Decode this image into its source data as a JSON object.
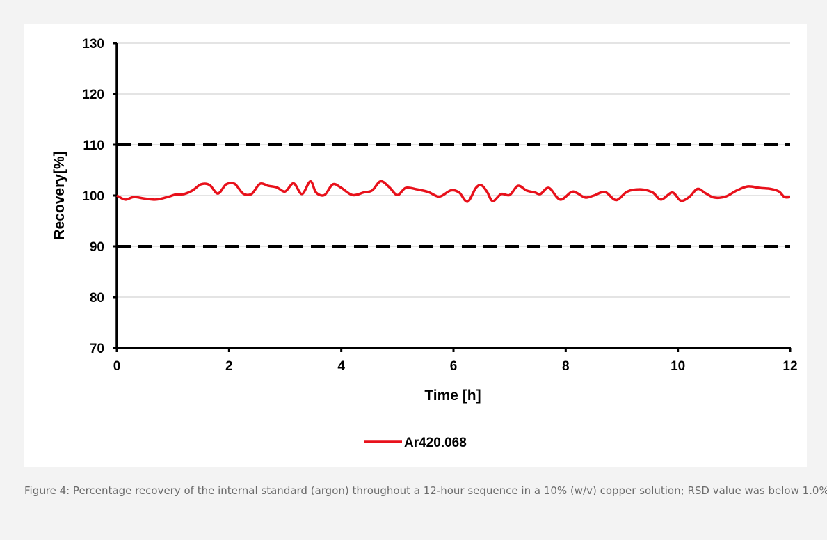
{
  "chart_data": {
    "type": "line",
    "xlabel": "Time [h]",
    "ylabel": "Recovery[%]",
    "xlim": [
      0,
      12
    ],
    "ylim": [
      70,
      130
    ],
    "x_ticks": [
      "0",
      "2",
      "4",
      "6",
      "8",
      "10",
      "12"
    ],
    "y_ticks": [
      "70",
      "80",
      "90",
      "100",
      "110",
      "120",
      "130"
    ],
    "grid": "horizontal",
    "limit_lines": [
      90,
      110
    ],
    "legend_position": "bottom",
    "series": [
      {
        "name": "Ar420.068",
        "color": "#e8111b",
        "x": [
          0,
          0.15,
          0.3,
          0.5,
          0.7,
          0.9,
          1.05,
          1.2,
          1.35,
          1.5,
          1.65,
          1.8,
          1.95,
          2.1,
          2.25,
          2.4,
          2.55,
          2.7,
          2.85,
          3.0,
          3.15,
          3.3,
          3.45,
          3.55,
          3.7,
          3.85,
          4.0,
          4.2,
          4.4,
          4.55,
          4.7,
          4.85,
          5.0,
          5.15,
          5.35,
          5.55,
          5.75,
          5.95,
          6.1,
          6.25,
          6.4,
          6.5,
          6.6,
          6.7,
          6.85,
          7.0,
          7.15,
          7.3,
          7.45,
          7.55,
          7.7,
          7.9,
          8.1,
          8.2,
          8.35,
          8.5,
          8.7,
          8.9,
          9.1,
          9.35,
          9.55,
          9.7,
          9.9,
          10.05,
          10.2,
          10.35,
          10.5,
          10.65,
          10.85,
          11.05,
          11.25,
          11.45,
          11.65,
          11.8,
          11.9,
          12.0
        ],
        "values": [
          100.0,
          99.2,
          99.7,
          99.4,
          99.2,
          99.7,
          100.2,
          100.3,
          101.0,
          102.2,
          102.1,
          100.4,
          102.2,
          102.3,
          100.4,
          100.3,
          102.3,
          101.9,
          101.6,
          100.8,
          102.4,
          100.3,
          102.8,
          100.6,
          100.1,
          102.2,
          101.5,
          100.1,
          100.6,
          101.0,
          102.8,
          101.7,
          100.1,
          101.5,
          101.2,
          100.7,
          99.8,
          101.0,
          100.6,
          98.8,
          101.5,
          102.0,
          100.7,
          98.9,
          100.3,
          100.1,
          101.9,
          101.0,
          100.6,
          100.3,
          101.5,
          99.2,
          100.7,
          100.5,
          99.6,
          100.0,
          100.7,
          99.1,
          100.8,
          101.2,
          100.6,
          99.2,
          100.6,
          99.0,
          99.7,
          101.3,
          100.4,
          99.6,
          99.8,
          101.0,
          101.8,
          101.5,
          101.3,
          100.8,
          99.7,
          99.7
        ]
      }
    ]
  },
  "caption": {
    "text": "Figure 4: Percentage recovery of the internal standard (argon) throughout a 12-hour sequence in a 10% (w/v) copper solution; RSD value was below 1.0%"
  }
}
